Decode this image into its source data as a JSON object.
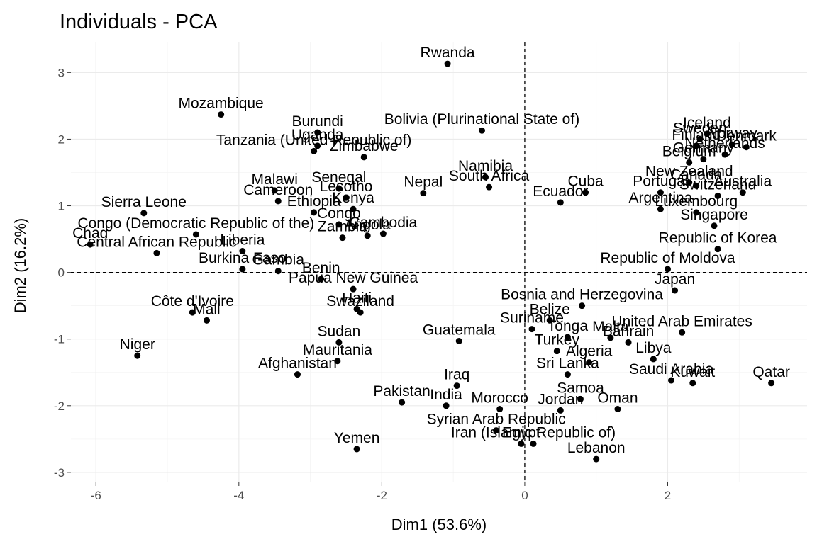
{
  "chart_data": {
    "type": "scatter",
    "title": "Individuals - PCA",
    "xlabel": "Dim1 (53.6%)",
    "ylabel": "Dim2 (16.2%)",
    "xlim": [
      -6.35,
      3.95
    ],
    "ylim": [
      -3.15,
      3.45
    ],
    "xticks": [
      -6,
      -4,
      -2,
      0,
      2
    ],
    "yticks": [
      -3,
      -2,
      -1,
      0,
      1,
      2,
      3
    ],
    "reference_lines": {
      "x": 0,
      "y": 0
    },
    "grid": true,
    "points": [
      {
        "label": "Rwanda",
        "x": -1.08,
        "y": 3.13
      },
      {
        "label": "Mozambique",
        "x": -4.25,
        "y": 2.37
      },
      {
        "label": "Burundi",
        "x": -2.9,
        "y": 2.1
      },
      {
        "label": "Bolivia (Plurinational State of)",
        "x": -0.6,
        "y": 2.13
      },
      {
        "label": "Tanzania (United Republic of)",
        "x": -2.95,
        "y": 1.82
      },
      {
        "label": "Uganda",
        "x": -2.9,
        "y": 1.9
      },
      {
        "label": "Zimbabwe",
        "x": -2.25,
        "y": 1.73
      },
      {
        "label": "Namibia",
        "x": -0.55,
        "y": 1.43
      },
      {
        "label": "South Africa",
        "x": -0.5,
        "y": 1.28
      },
      {
        "label": "Nepal",
        "x": -1.42,
        "y": 1.19
      },
      {
        "label": "Malawi",
        "x": -3.5,
        "y": 1.23
      },
      {
        "label": "Senegal",
        "x": -2.6,
        "y": 1.26
      },
      {
        "label": "Cameroon",
        "x": -3.45,
        "y": 1.07
      },
      {
        "label": "Lesotho",
        "x": -2.5,
        "y": 1.12
      },
      {
        "label": "Ethiopia",
        "x": -2.95,
        "y": 0.9
      },
      {
        "label": "Kenya",
        "x": -2.4,
        "y": 0.95
      },
      {
        "label": "Congo",
        "x": -2.6,
        "y": 0.72
      },
      {
        "label": "Cambodia",
        "x": -1.98,
        "y": 0.58
      },
      {
        "label": "Zambia",
        "x": -2.55,
        "y": 0.52
      },
      {
        "label": "Angola",
        "x": -2.2,
        "y": 0.55
      },
      {
        "label": "Sierra Leone",
        "x": -5.33,
        "y": 0.89
      },
      {
        "label": "Congo (Democratic Republic of the)",
        "x": -4.6,
        "y": 0.57
      },
      {
        "label": "Chad",
        "x": -6.08,
        "y": 0.42
      },
      {
        "label": "Central African Republic",
        "x": -5.15,
        "y": 0.29
      },
      {
        "label": "Liberia",
        "x": -3.95,
        "y": 0.32
      },
      {
        "label": "Burkina Faso",
        "x": -3.95,
        "y": 0.05
      },
      {
        "label": "Gambia",
        "x": -3.45,
        "y": 0.02
      },
      {
        "label": "Benin",
        "x": -2.85,
        "y": -0.1
      },
      {
        "label": "Papua New Guinea",
        "x": -2.4,
        "y": -0.25
      },
      {
        "label": "Swaziland",
        "x": -2.3,
        "y": -0.6
      },
      {
        "label": "Haiti",
        "x": -2.35,
        "y": -0.55
      },
      {
        "label": "Côte d'Ivoire",
        "x": -4.65,
        "y": -0.6
      },
      {
        "label": "Mali",
        "x": -4.45,
        "y": -0.72
      },
      {
        "label": "Niger",
        "x": -5.42,
        "y": -1.25
      },
      {
        "label": "Sudan",
        "x": -2.6,
        "y": -1.05
      },
      {
        "label": "Mauritania",
        "x": -2.62,
        "y": -1.33
      },
      {
        "label": "Afghanistan",
        "x": -3.18,
        "y": -1.53
      },
      {
        "label": "Pakistan",
        "x": -1.72,
        "y": -1.95
      },
      {
        "label": "Yemen",
        "x": -2.35,
        "y": -2.65
      },
      {
        "label": "Iraq",
        "x": -0.95,
        "y": -1.7
      },
      {
        "label": "India",
        "x": -1.1,
        "y": -2.0
      },
      {
        "label": "Guatemala",
        "x": -0.92,
        "y": -1.03
      },
      {
        "label": "Morocco",
        "x": -0.35,
        "y": -2.05
      },
      {
        "label": "Syrian Arab Republic",
        "x": -0.4,
        "y": -2.37
      },
      {
        "label": "Egypt",
        "x": -0.05,
        "y": -2.57
      },
      {
        "label": "Iran (Islamic Republic of)",
        "x": 0.12,
        "y": -2.57
      },
      {
        "label": "Jordan",
        "x": 0.5,
        "y": -2.07
      },
      {
        "label": "Lebanon",
        "x": 1.0,
        "y": -2.8
      },
      {
        "label": "Samoa",
        "x": 0.78,
        "y": -1.9
      },
      {
        "label": "Oman",
        "x": 1.3,
        "y": -2.05
      },
      {
        "label": "Sri Lanka",
        "x": 0.6,
        "y": -1.53
      },
      {
        "label": "Turkey",
        "x": 0.45,
        "y": -1.18
      },
      {
        "label": "Algeria",
        "x": 0.9,
        "y": -1.35
      },
      {
        "label": "Libya",
        "x": 1.8,
        "y": -1.3
      },
      {
        "label": "Saudi Arabia",
        "x": 2.05,
        "y": -1.62
      },
      {
        "label": "Kuwait",
        "x": 2.35,
        "y": -1.66
      },
      {
        "label": "Qatar",
        "x": 3.45,
        "y": -1.66
      },
      {
        "label": "Bahrain",
        "x": 1.45,
        "y": -1.05
      },
      {
        "label": "United Arab Emirates",
        "x": 2.2,
        "y": -0.9
      },
      {
        "label": "Japan",
        "x": 2.1,
        "y": -0.27
      },
      {
        "label": "Tonga",
        "x": 0.6,
        "y": -0.97
      },
      {
        "label": "Malta",
        "x": 1.2,
        "y": -0.98
      },
      {
        "label": "Suriname",
        "x": 0.1,
        "y": -0.85
      },
      {
        "label": "Belize",
        "x": 0.35,
        "y": -0.72
      },
      {
        "label": "Bosnia and Herzegovina",
        "x": 0.8,
        "y": -0.5
      },
      {
        "label": "Cuba",
        "x": 0.85,
        "y": 1.2
      },
      {
        "label": "Ecuador",
        "x": 0.5,
        "y": 1.05
      },
      {
        "label": "Argentina",
        "x": 1.9,
        "y": 0.95
      },
      {
        "label": "Belgium",
        "x": 2.3,
        "y": 1.65
      },
      {
        "label": "Iceland",
        "x": 2.55,
        "y": 2.08
      },
      {
        "label": "Sweden",
        "x": 2.45,
        "y": 2.0
      },
      {
        "label": "Finland",
        "x": 2.4,
        "y": 1.9
      },
      {
        "label": "Norway",
        "x": 2.9,
        "y": 1.92
      },
      {
        "label": "Denmark",
        "x": 3.1,
        "y": 1.88
      },
      {
        "label": "Netherlands",
        "x": 2.8,
        "y": 1.77
      },
      {
        "label": "Germany",
        "x": 2.5,
        "y": 1.7
      },
      {
        "label": "New Zealand",
        "x": 2.3,
        "y": 1.35
      },
      {
        "label": "Australia",
        "x": 3.05,
        "y": 1.2
      },
      {
        "label": "Canada",
        "x": 2.4,
        "y": 1.3
      },
      {
        "label": "Portugal",
        "x": 1.9,
        "y": 1.2
      },
      {
        "label": "Switzerland",
        "x": 2.7,
        "y": 1.15
      },
      {
        "label": "Luxembourg",
        "x": 2.4,
        "y": 0.9
      },
      {
        "label": "Singapore",
        "x": 2.65,
        "y": 0.7
      },
      {
        "label": "Republic of Korea",
        "x": 2.7,
        "y": 0.35
      },
      {
        "label": "Republic of Moldova",
        "x": 2.0,
        "y": 0.05
      }
    ]
  }
}
